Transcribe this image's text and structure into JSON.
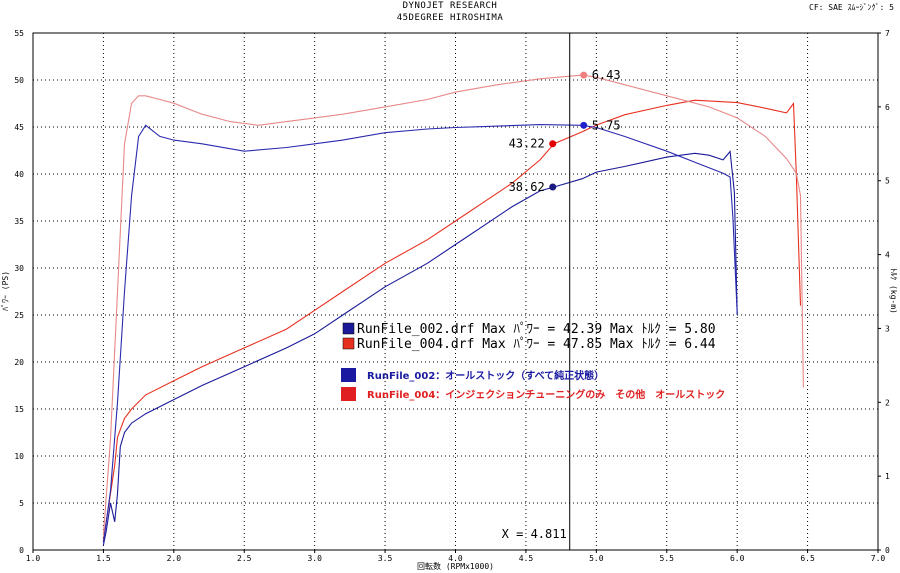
{
  "header": {
    "title": "DYNOJET  RESEARCH",
    "subtitle": "45DEGREE HIROSHIMA",
    "corner": "CF: SAE  ｽﾑｰｼﾞﾝｸﾞ: 5"
  },
  "chart_data": {
    "type": "line",
    "xlabel": "回転数 (RPMx1000)",
    "ylabel_left": "ﾊﾟﾜｰ (PS)",
    "ylabel_right": "ﾄﾙｸ (kg-m)",
    "xlim": [
      1.0,
      7.0
    ],
    "ylim_left": [
      0,
      55
    ],
    "ylim_right": [
      0,
      7
    ],
    "x_ticks": [
      "1.0",
      "1.5",
      "2.0",
      "2.5",
      "3.0",
      "3.5",
      "4.0",
      "4.5",
      "5.0",
      "5.5",
      "6.0",
      "6.5",
      "7.0"
    ],
    "y_ticks_left": [
      "0",
      "5",
      "10",
      "15",
      "20",
      "25",
      "30",
      "35",
      "40",
      "45",
      "50",
      "55"
    ],
    "y_ticks_right": [
      "0",
      "1",
      "2",
      "3",
      "4",
      "5",
      "6",
      "7"
    ],
    "grid": true,
    "cursor": {
      "x": 4.811,
      "label": "X = 4.811"
    },
    "series": [
      {
        "name": "RunFile_002 power",
        "color": "#1a1a99",
        "axis": "left",
        "points": [
          [
            1.5,
            0.5
          ],
          [
            1.52,
            2
          ],
          [
            1.55,
            5
          ],
          [
            1.58,
            3
          ],
          [
            1.6,
            6
          ],
          [
            1.62,
            11
          ],
          [
            1.65,
            12.5
          ],
          [
            1.7,
            13.5
          ],
          [
            1.8,
            14.5
          ],
          [
            2.0,
            16
          ],
          [
            2.2,
            17.5
          ],
          [
            2.5,
            19.5
          ],
          [
            2.8,
            21.5
          ],
          [
            3.0,
            23
          ],
          [
            3.2,
            25
          ],
          [
            3.5,
            28
          ],
          [
            3.8,
            30.5
          ],
          [
            4.0,
            32.5
          ],
          [
            4.2,
            34.5
          ],
          [
            4.4,
            36.5
          ],
          [
            4.6,
            38.2
          ],
          [
            4.7,
            38.62
          ],
          [
            4.9,
            39.5
          ],
          [
            5.0,
            40.2
          ],
          [
            5.2,
            40.8
          ],
          [
            5.5,
            41.8
          ],
          [
            5.7,
            42.2
          ],
          [
            5.8,
            42.0
          ],
          [
            5.9,
            41.5
          ],
          [
            5.95,
            42.39
          ],
          [
            5.98,
            38
          ],
          [
            6.0,
            25
          ]
        ]
      },
      {
        "name": "RunFile_004 power",
        "color": "#e83020",
        "axis": "left",
        "points": [
          [
            1.5,
            1
          ],
          [
            1.52,
            3
          ],
          [
            1.55,
            6
          ],
          [
            1.58,
            9
          ],
          [
            1.6,
            12
          ],
          [
            1.65,
            14
          ],
          [
            1.7,
            15
          ],
          [
            1.8,
            16.5
          ],
          [
            2.0,
            18
          ],
          [
            2.2,
            19.5
          ],
          [
            2.5,
            21.5
          ],
          [
            2.8,
            23.5
          ],
          [
            3.0,
            25.5
          ],
          [
            3.2,
            27.5
          ],
          [
            3.5,
            30.5
          ],
          [
            3.8,
            33
          ],
          [
            4.0,
            35
          ],
          [
            4.2,
            37
          ],
          [
            4.4,
            39
          ],
          [
            4.6,
            41.5
          ],
          [
            4.7,
            43.22
          ],
          [
            4.9,
            44.5
          ],
          [
            5.0,
            45.2
          ],
          [
            5.2,
            46.3
          ],
          [
            5.5,
            47.3
          ],
          [
            5.7,
            47.85
          ],
          [
            6.0,
            47.6
          ],
          [
            6.2,
            47.0
          ],
          [
            6.35,
            46.5
          ],
          [
            6.4,
            47.5
          ],
          [
            6.42,
            40
          ],
          [
            6.45,
            26
          ]
        ]
      },
      {
        "name": "RunFile_002 torque",
        "color": "#2a2ab0",
        "axis": "right",
        "points": [
          [
            1.5,
            0.1
          ],
          [
            1.55,
            0.8
          ],
          [
            1.6,
            2.0
          ],
          [
            1.65,
            3.5
          ],
          [
            1.7,
            4.8
          ],
          [
            1.75,
            5.6
          ],
          [
            1.8,
            5.75
          ],
          [
            1.9,
            5.6
          ],
          [
            2.0,
            5.55
          ],
          [
            2.2,
            5.5
          ],
          [
            2.5,
            5.4
          ],
          [
            2.8,
            5.45
          ],
          [
            3.0,
            5.5
          ],
          [
            3.2,
            5.55
          ],
          [
            3.5,
            5.65
          ],
          [
            3.8,
            5.7
          ],
          [
            4.0,
            5.72
          ],
          [
            4.3,
            5.74
          ],
          [
            4.6,
            5.76
          ],
          [
            4.9,
            5.75
          ],
          [
            5.0,
            5.72
          ],
          [
            5.2,
            5.6
          ],
          [
            5.5,
            5.4
          ],
          [
            5.7,
            5.25
          ],
          [
            5.9,
            5.1
          ],
          [
            5.95,
            5.05
          ],
          [
            5.97,
            4.5
          ],
          [
            6.0,
            3.2
          ]
        ]
      },
      {
        "name": "RunFile_004 torque",
        "color": "#e88888",
        "axis": "right",
        "points": [
          [
            1.5,
            0.2
          ],
          [
            1.55,
            1.5
          ],
          [
            1.6,
            3.5
          ],
          [
            1.65,
            5.5
          ],
          [
            1.7,
            6.05
          ],
          [
            1.75,
            6.15
          ],
          [
            1.8,
            6.15
          ],
          [
            1.9,
            6.1
          ],
          [
            2.0,
            6.05
          ],
          [
            2.2,
            5.9
          ],
          [
            2.4,
            5.8
          ],
          [
            2.6,
            5.75
          ],
          [
            2.8,
            5.8
          ],
          [
            3.0,
            5.85
          ],
          [
            3.2,
            5.9
          ],
          [
            3.5,
            6.0
          ],
          [
            3.8,
            6.1
          ],
          [
            4.0,
            6.2
          ],
          [
            4.3,
            6.3
          ],
          [
            4.6,
            6.38
          ],
          [
            4.9,
            6.43
          ],
          [
            5.0,
            6.4
          ],
          [
            5.2,
            6.3
          ],
          [
            5.5,
            6.15
          ],
          [
            5.8,
            6.0
          ],
          [
            6.0,
            5.85
          ],
          [
            6.2,
            5.6
          ],
          [
            6.35,
            5.3
          ],
          [
            6.42,
            5.1
          ],
          [
            6.45,
            4.8
          ],
          [
            6.47,
            2.2
          ]
        ]
      }
    ],
    "cursor_points": [
      {
        "value": "6.43",
        "series": "RunFile_004 torque",
        "axis": "right",
        "y": 6.43,
        "color": "#f08080",
        "side": "right"
      },
      {
        "value": "5.75",
        "series": "RunFile_002 torque",
        "axis": "right",
        "y": 5.75,
        "color": "#2020cc",
        "side": "right"
      },
      {
        "value": "43.22",
        "series": "RunFile_004 power",
        "axis": "left",
        "y": 43.22,
        "color": "#e00000",
        "side": "left"
      },
      {
        "value": "38.62",
        "series": "RunFile_002 power",
        "axis": "left",
        "y": 38.62,
        "color": "#1a1a80",
        "side": "left"
      }
    ],
    "stats": [
      {
        "text": "RunFile_002.drf Max ﾊﾟﾜｰ = 42.39      Max ﾄﾙｸ = 5.80",
        "swatch": "#1a1a99"
      },
      {
        "text": "RunFile_004.drf Max ﾊﾟﾜｰ = 47.85      Max ﾄﾙｸ = 6.44",
        "swatch": "#e83020"
      }
    ],
    "notes": [
      {
        "text": "RunFile_002：オールストック（すべて純正状態）",
        "color": "#1a1aa0"
      },
      {
        "text": "RunFile_004：インジェクションチューニングのみ　その他　オールストック",
        "color": "#e02020"
      }
    ]
  }
}
